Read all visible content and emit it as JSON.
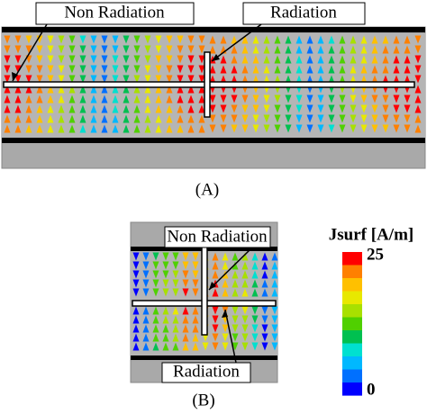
{
  "panel_a": {
    "label_left": "Non Radiation",
    "label_right": "Radiation",
    "caption": "(A)"
  },
  "panel_b": {
    "label_top": "Non Radiation",
    "label_bottom": "Radiation",
    "caption": "(B)"
  },
  "colorbar": {
    "title": "Jsurf [A/m]",
    "max": 25,
    "min": 0
  }
}
